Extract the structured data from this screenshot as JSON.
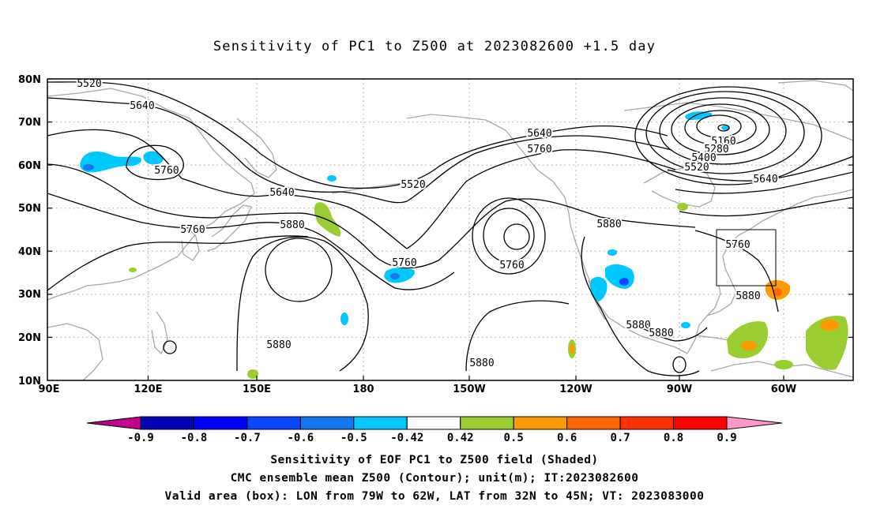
{
  "title": "Sensitivity of PC1 to Z500 at 2023082600 +1.5 day",
  "map": {
    "lat_labels": [
      "80N",
      "70N",
      "60N",
      "50N",
      "40N",
      "30N",
      "20N",
      "10N"
    ],
    "lon_labels": [
      "90E",
      "120E",
      "150E",
      "180",
      "150W",
      "120W",
      "90W",
      "60W"
    ],
    "contour_labels": [
      {
        "id": "c5520a",
        "text": "5520"
      },
      {
        "id": "c5640a",
        "text": "5640"
      },
      {
        "id": "c5760a",
        "text": "5760"
      },
      {
        "id": "c5640b",
        "text": "5640"
      },
      {
        "id": "c5760b",
        "text": "5760"
      },
      {
        "id": "c5880a",
        "text": "5880"
      },
      {
        "id": "c5520b",
        "text": "5520"
      },
      {
        "id": "c5760c",
        "text": "5760"
      },
      {
        "id": "c5760d",
        "text": "5760"
      },
      {
        "id": "c5880b",
        "text": "5880"
      },
      {
        "id": "c5640c",
        "text": "5640"
      },
      {
        "id": "c5760e",
        "text": "5760"
      },
      {
        "id": "c5880c",
        "text": "5880"
      },
      {
        "id": "c5160",
        "text": "5160"
      },
      {
        "id": "c5280",
        "text": "5280"
      },
      {
        "id": "c5400",
        "text": "5400"
      },
      {
        "id": "c5520c",
        "text": "5520"
      },
      {
        "id": "c5640d",
        "text": "5640"
      },
      {
        "id": "c5760f",
        "text": "5760"
      },
      {
        "id": "c5880d",
        "text": "5880"
      },
      {
        "id": "c5880e",
        "text": "5880"
      },
      {
        "id": "c5880f",
        "text": "5880"
      },
      {
        "id": "c5880g",
        "text": "5880"
      }
    ],
    "valid_box": {
      "lon_min": -79,
      "lon_max": -62,
      "lat_min": 32,
      "lat_max": 45
    }
  },
  "colorbar": {
    "labels": [
      "-0.9",
      "-0.8",
      "-0.7",
      "-0.6",
      "-0.5",
      "-0.42",
      "0.42",
      "0.5",
      "0.6",
      "0.7",
      "0.8",
      "0.9"
    ],
    "colors": [
      "#0000b4",
      "#0000ff",
      "#0a46ff",
      "#1478f0",
      "#00c8ff",
      "#ffffff",
      "#9acd32",
      "#ff9900",
      "#ff6600",
      "#ff3300",
      "#ff0000"
    ],
    "low_end_color": "#c0008a",
    "high_end_color": "#ff99cc"
  },
  "captions": {
    "line1": "Sensitivity of EOF PC1 to Z500 field (Shaded)",
    "line2": "CMC ensemble mean Z500 (Contour); unit(m); IT:2023082600",
    "line3": "Valid area (box): LON from 79W to 62W, LAT from 32N to 45N; VT: 2023083000"
  }
}
